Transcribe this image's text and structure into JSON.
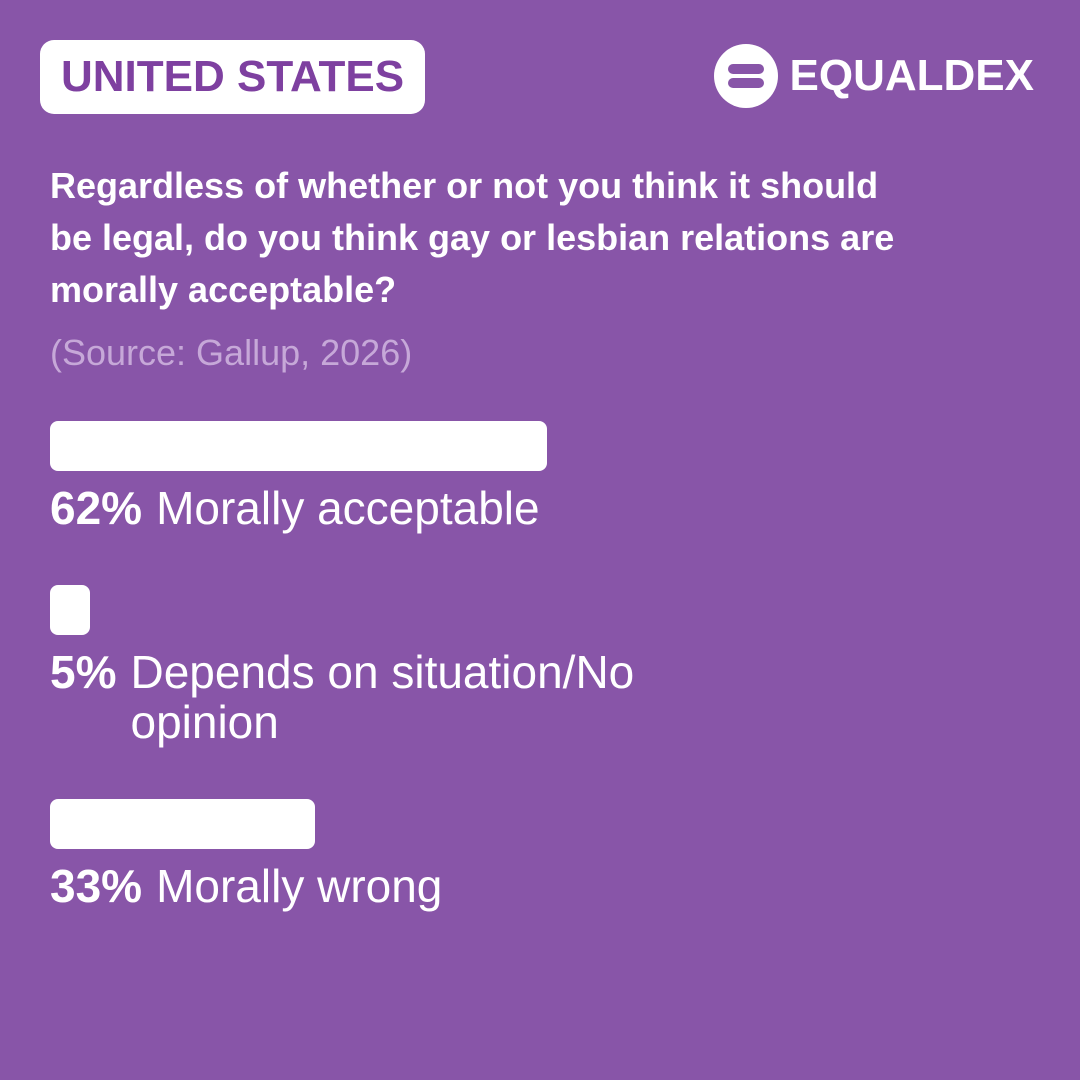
{
  "chart_data": {
    "type": "bar",
    "country": "UNITED STATES",
    "brand": "EQUALDEX",
    "title": "Regardless of whether or not you think it should be legal, do you think gay or lesbian relations are morally acceptable?",
    "source": "(Source: Gallup, 2026)",
    "categories": [
      "Morally acceptable",
      "Depends on situation/No opinion",
      "Morally wrong"
    ],
    "values": [
      62,
      5,
      33
    ],
    "value_labels": [
      "62%",
      "5%",
      "33%"
    ],
    "color": "#ffffff"
  }
}
